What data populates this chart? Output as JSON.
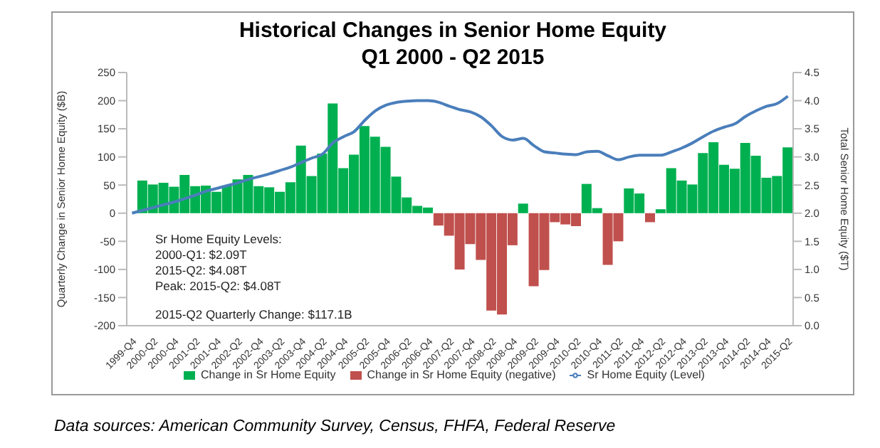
{
  "chart_data": {
    "type": "bar",
    "title": "Historical Changes in Senior Home Equity",
    "subtitle": "Q1 2000 - Q2 2015",
    "ylabel": "Quarterly Change in Senior Home Equity ($B)",
    "y2label": "Total Senior Home Equity ($T)",
    "categories": [
      "1999-Q4",
      null,
      "2000-Q2",
      null,
      "2000-Q4",
      null,
      "2001-Q2",
      null,
      "2001-Q4",
      null,
      "2002-Q2",
      null,
      "2002-Q4",
      null,
      "2003-Q2",
      null,
      "2003-Q4",
      null,
      "2004-Q2",
      null,
      "2004-Q4",
      null,
      "2005-Q2",
      null,
      "2005-Q4",
      null,
      "2006-Q2",
      null,
      "2006-Q4",
      null,
      "2007-Q2",
      null,
      "2007-Q4",
      null,
      "2008-Q2",
      null,
      "2008-Q4",
      null,
      "2009-Q2",
      null,
      "2009-Q4",
      null,
      "2010-Q2",
      null,
      "2010-Q4",
      null,
      "2011-Q2",
      null,
      "2011-Q4",
      null,
      "2012-Q2",
      null,
      "2012-Q4",
      null,
      "2013-Q2",
      null,
      "2013-Q4",
      null,
      "2014-Q2",
      null,
      "2014-Q4",
      null,
      "2015-Q2"
    ],
    "series": [
      {
        "name": "Change in Sr Home Equity (negative)",
        "color": "#c0504d",
        "values": [
          null,
          null,
          null,
          null,
          null,
          null,
          null,
          null,
          null,
          null,
          null,
          null,
          null,
          null,
          null,
          null,
          null,
          null,
          null,
          null,
          null,
          null,
          null,
          null,
          null,
          null,
          null,
          null,
          null,
          -22,
          -40,
          -100,
          -55,
          -83,
          -173,
          -180,
          -57,
          null,
          -130,
          -101,
          -16,
          -20,
          -23,
          null,
          null,
          -92,
          -50,
          null,
          null,
          -16,
          null,
          null,
          null,
          null,
          null,
          null,
          null,
          null,
          null,
          null,
          null,
          null,
          null
        ]
      },
      {
        "name": "Change in Sr Home Equity",
        "color": "#00b050",
        "values": [
          null,
          58,
          51,
          54,
          47,
          68,
          48,
          49,
          38,
          49,
          60,
          68,
          48,
          46,
          38,
          55,
          120,
          66,
          106,
          195,
          80,
          104,
          155,
          136,
          118,
          65,
          28,
          13,
          10,
          null,
          null,
          null,
          null,
          null,
          null,
          null,
          null,
          17,
          null,
          null,
          null,
          null,
          null,
          52,
          9,
          null,
          null,
          44,
          35,
          null,
          7,
          80,
          58,
          51,
          107,
          126,
          86,
          79,
          125,
          102,
          63,
          66,
          117
        ]
      },
      {
        "name": "Sr Home Equity (Level)",
        "type": "line",
        "axis": "y2",
        "color": "#4a7ebb",
        "values": [
          2.0,
          2.05,
          2.1,
          2.15,
          2.2,
          2.26,
          2.32,
          2.39,
          2.44,
          2.49,
          2.54,
          2.6,
          2.65,
          2.7,
          2.76,
          2.82,
          2.9,
          2.98,
          3.05,
          3.25,
          3.36,
          3.45,
          3.65,
          3.82,
          3.92,
          3.97,
          3.99,
          4.0,
          4.0,
          3.97,
          3.9,
          3.84,
          3.8,
          3.71,
          3.55,
          3.36,
          3.3,
          3.33,
          3.2,
          3.09,
          3.07,
          3.05,
          3.04,
          3.09,
          3.1,
          3.02,
          2.95,
          3.0,
          3.03,
          3.03,
          3.03,
          3.09,
          3.16,
          3.25,
          3.36,
          3.46,
          3.53,
          3.59,
          3.72,
          3.82,
          3.9,
          3.95,
          4.08
        ]
      }
    ],
    "ylim": [
      -200,
      250
    ],
    "yticks": [
      -200,
      -150,
      -100,
      -50,
      0,
      50,
      100,
      150,
      200,
      250
    ],
    "y2lim": [
      0,
      4.5
    ],
    "y2ticks": [
      {
        "value": 0,
        "label": "0.0"
      },
      {
        "value": 0.5,
        "label": "0.5"
      },
      {
        "value": 1,
        "label": "1.0"
      },
      {
        "value": 1.5,
        "label": "1.5"
      },
      {
        "value": 2,
        "label": "2.0"
      },
      {
        "value": 2.5,
        "label": "2.5"
      },
      {
        "value": 3,
        "label": "3.0"
      },
      {
        "value": 3.5,
        "label": "3.5"
      },
      {
        "value": 4,
        "label": "4.0"
      },
      {
        "value": 4.5,
        "label": "4.5"
      }
    ],
    "grid": false,
    "legend": "bottom",
    "marker": "none",
    "line_style": "solid",
    "annotations": [
      "Sr Home Equity Levels:",
      "2000-Q1: $2.09T",
      "2015-Q2: $4.08T",
      "Peak: 2015-Q2: $4.08T",
      "2015-Q2 Quarterly Change: $117.1B",
      "Data sources: American Community Survey, Census, FHFA, Federal Reserve"
    ]
  }
}
